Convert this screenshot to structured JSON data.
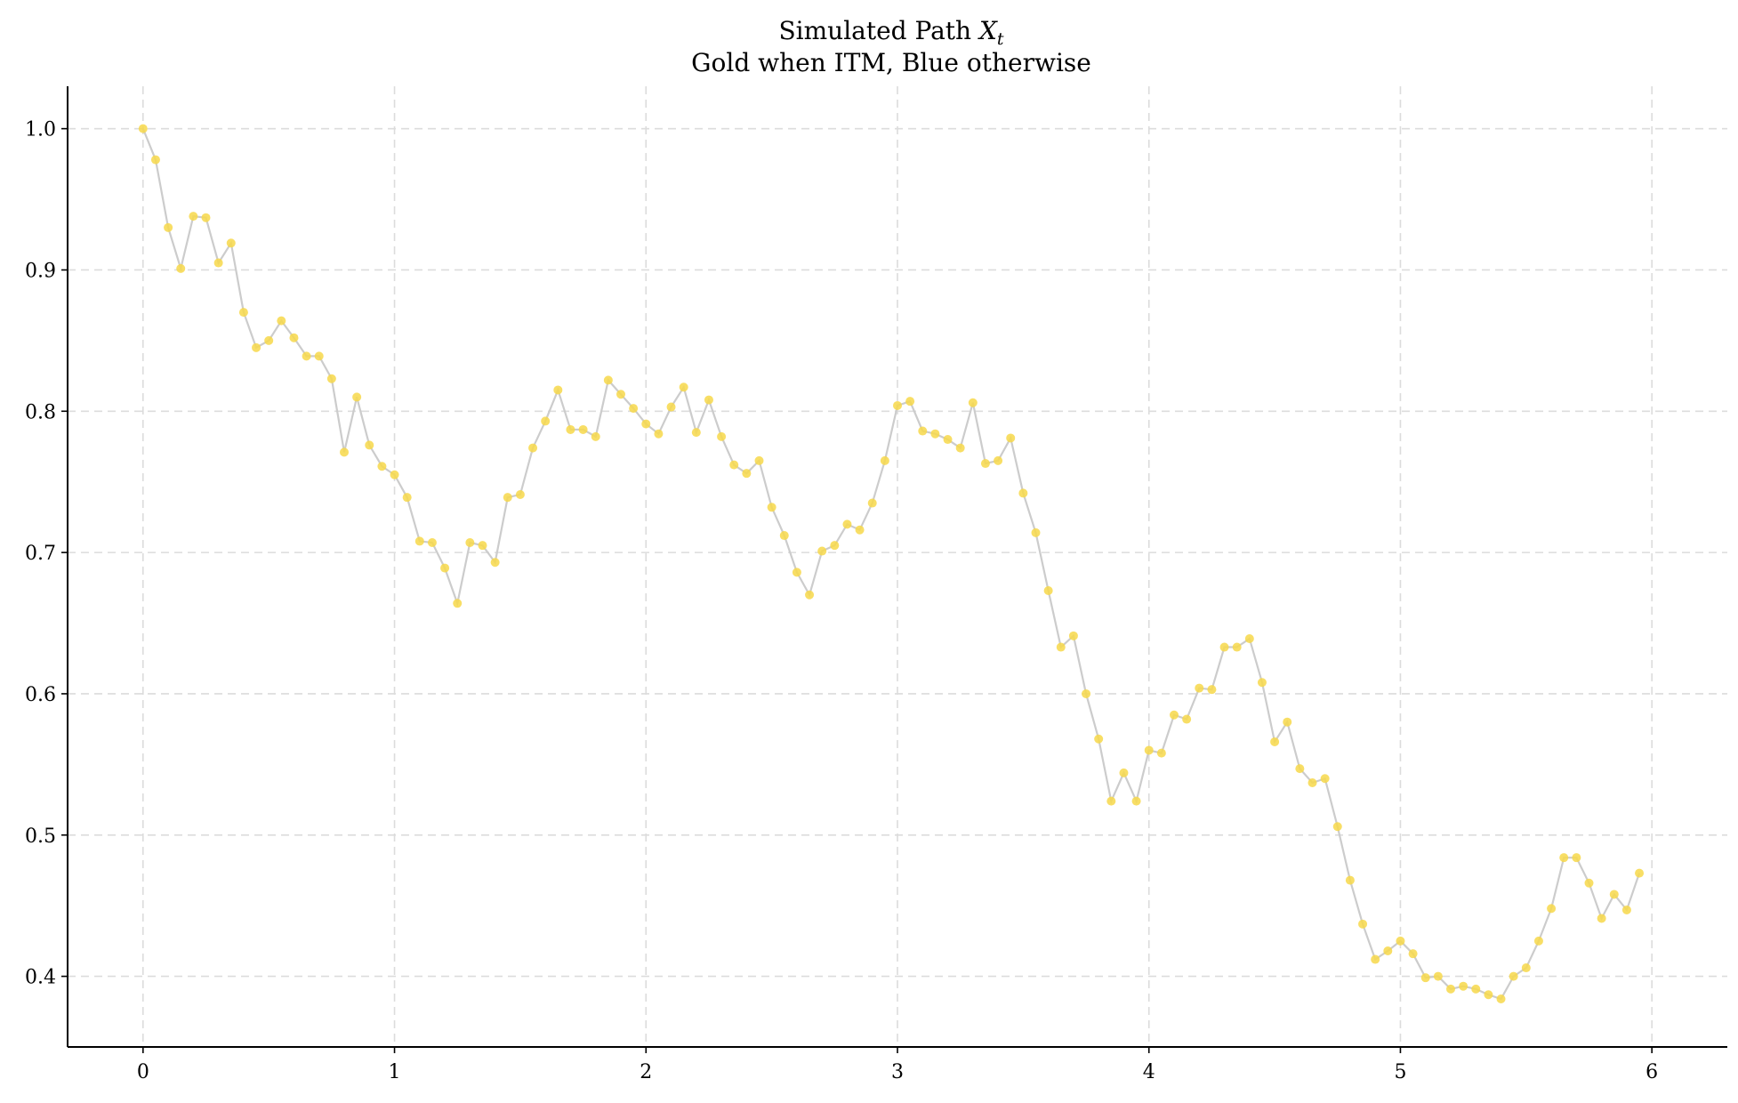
{
  "chart_data": {
    "type": "scatter",
    "title": "Simulated Path X_t",
    "title_prefix": "Simulated Path ",
    "title_var": "X",
    "title_sub": "t",
    "subtitle": "Gold when ITM, Blue otherwise",
    "xlabel": "",
    "ylabel": "",
    "xlim": [
      -0.3,
      6.3
    ],
    "ylim": [
      0.35,
      1.03
    ],
    "grid": true,
    "x_ticks": [
      0,
      1,
      2,
      3,
      4,
      5,
      6
    ],
    "x_tick_labels": [
      "0",
      "1",
      "2",
      "3",
      "4",
      "5",
      "6"
    ],
    "y_ticks": [
      0.4,
      0.5,
      0.6,
      0.7,
      0.8,
      0.9,
      1.0
    ],
    "y_tick_labels": [
      "0.4",
      "0.5",
      "0.6",
      "0.7",
      "0.8",
      "0.9",
      "1.0"
    ],
    "colors": {
      "line": "#cccccc",
      "itm_point": "#f7d84a",
      "otm_point": "#4a7fd4",
      "grid": "#dcdcdc",
      "axis": "#000000"
    },
    "series": [
      {
        "x_step": 0.05,
        "itm": true,
        "values": [
          1.0,
          0.978,
          0.93,
          0.901,
          0.938,
          0.937,
          0.905,
          0.919,
          0.87,
          0.845,
          0.85,
          0.864,
          0.852,
          0.839,
          0.839,
          0.823,
          0.771,
          0.81,
          0.776,
          0.761,
          0.755,
          0.739,
          0.708,
          0.707,
          0.689,
          0.664,
          0.707,
          0.705,
          0.693,
          0.739,
          0.741,
          0.774,
          0.793,
          0.815,
          0.787,
          0.787,
          0.782,
          0.822,
          0.812,
          0.802,
          0.791,
          0.784,
          0.803,
          0.817,
          0.785,
          0.808,
          0.782,
          0.762,
          0.756,
          0.765,
          0.732,
          0.712,
          0.686,
          0.67,
          0.701,
          0.705,
          0.72,
          0.716,
          0.735,
          0.765,
          0.804,
          0.807,
          0.786,
          0.784,
          0.78,
          0.774,
          0.806,
          0.763,
          0.765,
          0.781,
          0.742,
          0.714,
          0.673,
          0.633,
          0.641,
          0.6,
          0.568,
          0.524,
          0.544,
          0.524,
          0.56,
          0.558,
          0.585,
          0.582,
          0.604,
          0.603,
          0.633,
          0.633,
          0.639,
          0.608,
          0.566,
          0.58,
          0.547,
          0.537,
          0.54,
          0.506,
          0.468,
          0.437,
          0.412,
          0.418,
          0.425,
          0.416,
          0.399,
          0.4,
          0.391,
          0.393,
          0.391,
          0.387,
          0.384,
          0.4,
          0.406,
          0.425,
          0.448,
          0.484,
          0.484,
          0.466,
          0.441,
          0.458,
          0.447,
          0.473
        ]
      }
    ]
  }
}
